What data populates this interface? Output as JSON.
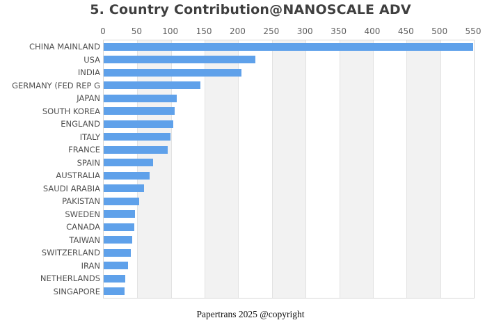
{
  "chart_data": {
    "type": "bar",
    "orientation": "horizontal",
    "title": "5. Country Contribution@NANOSCALE ADV",
    "caption": "Papertrans 2025 @copyright",
    "categories": [
      "CHINA MAINLAND",
      "USA",
      "INDIA",
      "GERMANY (FED REP G",
      "JAPAN",
      "SOUTH KOREA",
      "ENGLAND",
      "ITALY",
      "FRANCE",
      "SPAIN",
      "AUSTRALIA",
      "SAUDI ARABIA",
      "PAKISTAN",
      "SWEDEN",
      "CANADA",
      "TAIWAN",
      "SWITZERLAND",
      "IRAN",
      "NETHERLANDS",
      "SINGAPORE"
    ],
    "values": [
      549,
      225,
      205,
      144,
      109,
      105,
      103,
      99,
      95,
      73,
      68,
      60,
      53,
      47,
      46,
      42,
      40,
      36,
      32,
      31
    ],
    "x_ticks": [
      0,
      50,
      100,
      150,
      200,
      250,
      300,
      350,
      400,
      450,
      500,
      550
    ],
    "xlim": [
      0,
      550
    ],
    "xlabel": "",
    "ylabel": "",
    "axis_position": "top",
    "grid": "alternating-vertical-bands",
    "legend_position": "none",
    "bar_color": "#5fa1ea",
    "band_color": "#f2f2f2"
  }
}
